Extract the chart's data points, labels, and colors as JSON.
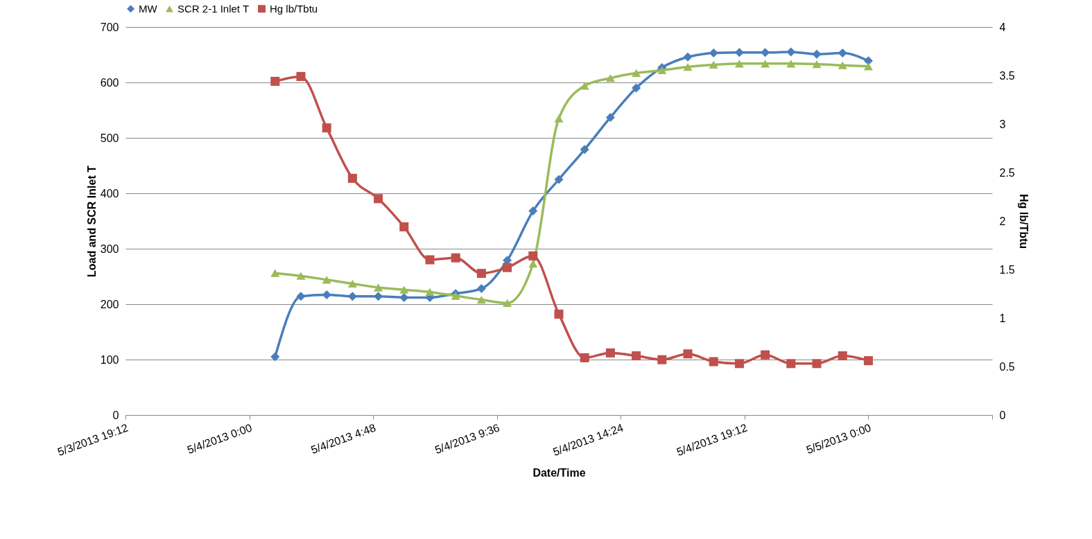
{
  "chart_data": {
    "type": "line",
    "xlabel": "Date/Time",
    "ylabel": "Load and SCR Inlet T",
    "y2label": "Hg lb/Tbtu",
    "x": [
      "2013-05-04T01:00",
      "2013-05-04T02:00",
      "2013-05-04T03:00",
      "2013-05-04T04:00",
      "2013-05-04T05:00",
      "2013-05-04T06:00",
      "2013-05-04T07:00",
      "2013-05-04T08:00",
      "2013-05-04T09:00",
      "2013-05-04T10:00",
      "2013-05-04T11:00",
      "2013-05-04T12:00",
      "2013-05-04T13:00",
      "2013-05-04T14:00",
      "2013-05-04T15:00",
      "2013-05-04T16:00",
      "2013-05-04T17:00",
      "2013-05-04T18:00",
      "2013-05-04T19:00",
      "2013-05-04T20:00",
      "2013-05-04T21:00",
      "2013-05-04T22:00",
      "2013-05-04T23:00",
      "2013-05-05T00:00"
    ],
    "series": [
      {
        "name": "MW",
        "color": "#4a7ebb",
        "marker": "diamond",
        "values": [
          105,
          214,
          217,
          214,
          214,
          212,
          212,
          219,
          228,
          279,
          368,
          425,
          479,
          537,
          590,
          627,
          646,
          653,
          654,
          654,
          655,
          651,
          653,
          639
        ]
      },
      {
        "name": "SCR 2-1 Inlet T",
        "color": "#9bbb59",
        "marker": "triangle",
        "values": [
          256,
          251,
          244,
          237,
          230,
          226,
          222,
          215,
          208,
          202,
          273,
          535,
          594,
          608,
          617,
          622,
          628,
          632,
          634,
          634,
          634,
          633,
          631,
          629
        ]
      },
      {
        "name": "Hg lb/Tbtu",
        "color": "#c0504d",
        "marker": "square",
        "axis": "y2",
        "values": [
          3.44,
          3.49,
          2.96,
          2.44,
          2.23,
          1.94,
          1.6,
          1.62,
          1.46,
          1.52,
          1.64,
          1.04,
          0.59,
          0.64,
          0.61,
          0.57,
          0.63,
          0.55,
          0.53,
          0.62,
          0.53,
          0.53,
          0.61,
          0.56
        ]
      }
    ],
    "xlim": [
      "2013-05-03T19:12",
      "2013-05-05T04:48"
    ],
    "xticks": [
      {
        "value": "2013-05-03T19:12",
        "label": "5/3/2013 19:12"
      },
      {
        "value": "2013-05-04T00:00",
        "label": "5/4/2013 0:00"
      },
      {
        "value": "2013-05-04T04:48",
        "label": "5/4/2013 4:48"
      },
      {
        "value": "2013-05-04T09:36",
        "label": "5/4/2013 9:36"
      },
      {
        "value": "2013-05-04T14:24",
        "label": "5/4/2013 14:24"
      },
      {
        "value": "2013-05-04T19:12",
        "label": "5/4/2013 19:12"
      },
      {
        "value": "2013-05-05T00:00",
        "label": "5/5/2013 0:00"
      },
      {
        "value": "2013-05-05T04:48",
        "label": null
      }
    ],
    "ylim": [
      0,
      700
    ],
    "yticks": [
      0,
      100,
      200,
      300,
      400,
      500,
      600,
      700
    ],
    "y2lim": [
      0,
      4
    ],
    "y2ticks": [
      0,
      0.5,
      1,
      1.5,
      2,
      2.5,
      3,
      3.5,
      4
    ],
    "grid": "y",
    "legend": "top"
  }
}
